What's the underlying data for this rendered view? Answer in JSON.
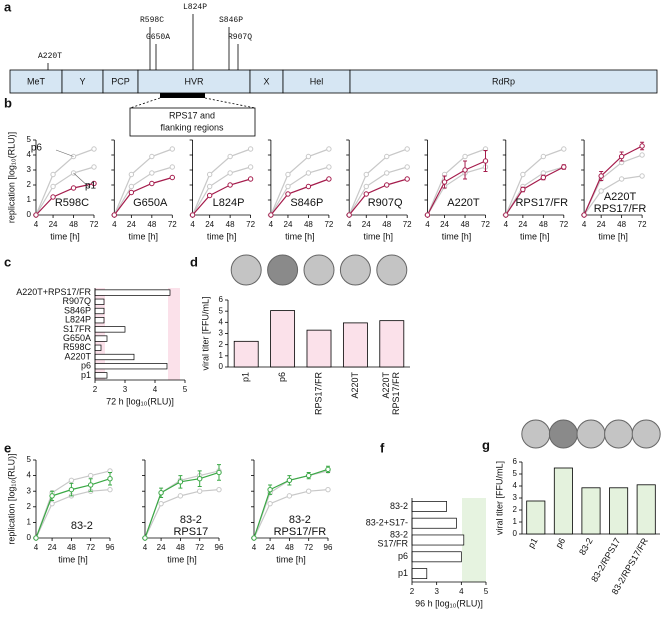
{
  "panel_labels": [
    "a",
    "b",
    "c",
    "d",
    "e",
    "f",
    "g"
  ],
  "genome": {
    "domains": [
      "MeT",
      "Y",
      "PCP",
      "HVR",
      "X",
      "Hel",
      "RdRp"
    ],
    "mutations": [
      "A220T",
      "R598C",
      "G650A",
      "L824P",
      "S846P",
      "R907Q"
    ],
    "inset": [
      "RPS17 and",
      "flanking regions"
    ]
  },
  "chart_data": [
    {
      "type": "line",
      "label": [
        "R598C"
      ],
      "annotations": [
        "p6",
        "p1"
      ],
      "ylabel": "replication [log₁₀(RLU)]",
      "xlabel": "time [h]",
      "x": [
        4,
        24,
        48,
        72
      ],
      "xlim": [
        4,
        72
      ],
      "xticks": [
        4,
        24,
        48,
        72
      ],
      "ylim": [
        0,
        5
      ],
      "yticks": [
        0,
        1,
        2,
        3,
        4,
        5
      ],
      "series": [
        {
          "color": "#c8c8c8",
          "values": [
            0,
            2.7,
            3.9,
            4.4
          ]
        },
        {
          "color": "#c8c8c8",
          "values": [
            0,
            1.9,
            2.8,
            3.2
          ]
        },
        {
          "color": "#a51c4c",
          "values": [
            0,
            1.2,
            1.8,
            2.1
          ]
        }
      ]
    },
    {
      "type": "line",
      "label": [
        "G650A"
      ],
      "xlabel": "time [h]",
      "x": [
        4,
        24,
        48,
        72
      ],
      "xlim": [
        4,
        72
      ],
      "xticks": [
        4,
        24,
        48,
        72
      ],
      "ylim": [
        0,
        5
      ],
      "yticks": [
        0,
        1,
        2,
        3,
        4,
        5
      ],
      "series": [
        {
          "color": "#c8c8c8",
          "values": [
            0,
            2.7,
            3.9,
            4.4
          ]
        },
        {
          "color": "#c8c8c8",
          "values": [
            0,
            1.9,
            2.8,
            3.2
          ]
        },
        {
          "color": "#a51c4c",
          "values": [
            0,
            1.5,
            2.1,
            2.5
          ]
        }
      ]
    },
    {
      "type": "line",
      "label": [
        "L824P"
      ],
      "xlabel": "time [h]",
      "x": [
        4,
        24,
        48,
        72
      ],
      "xlim": [
        4,
        72
      ],
      "xticks": [
        4,
        24,
        48,
        72
      ],
      "ylim": [
        0,
        5
      ],
      "yticks": [
        0,
        1,
        2,
        3,
        4,
        5
      ],
      "series": [
        {
          "color": "#c8c8c8",
          "values": [
            0,
            2.7,
            3.9,
            4.4
          ]
        },
        {
          "color": "#c8c8c8",
          "values": [
            0,
            1.9,
            2.8,
            3.2
          ]
        },
        {
          "color": "#a51c4c",
          "values": [
            0,
            1.3,
            2.0,
            2.4
          ]
        }
      ]
    },
    {
      "type": "line",
      "label": [
        "S846P"
      ],
      "xlabel": "time [h]",
      "x": [
        4,
        24,
        48,
        72
      ],
      "xlim": [
        4,
        72
      ],
      "xticks": [
        4,
        24,
        48,
        72
      ],
      "ylim": [
        0,
        5
      ],
      "yticks": [
        0,
        1,
        2,
        3,
        4,
        5
      ],
      "series": [
        {
          "color": "#c8c8c8",
          "values": [
            0,
            2.7,
            3.9,
            4.4
          ]
        },
        {
          "color": "#c8c8c8",
          "values": [
            0,
            1.9,
            2.8,
            3.2
          ]
        },
        {
          "color": "#a51c4c",
          "values": [
            0,
            1.4,
            1.9,
            2.4
          ]
        }
      ]
    },
    {
      "type": "line",
      "label": [
        "R907Q"
      ],
      "xlabel": "time [h]",
      "x": [
        4,
        24,
        48,
        72
      ],
      "xlim": [
        4,
        72
      ],
      "xticks": [
        4,
        24,
        48,
        72
      ],
      "ylim": [
        0,
        5
      ],
      "yticks": [
        0,
        1,
        2,
        3,
        4,
        5
      ],
      "series": [
        {
          "color": "#c8c8c8",
          "values": [
            0,
            2.7,
            3.9,
            4.4
          ]
        },
        {
          "color": "#c8c8c8",
          "values": [
            0,
            1.9,
            2.8,
            3.2
          ]
        },
        {
          "color": "#a51c4c",
          "values": [
            0,
            1.4,
            2.0,
            2.4
          ]
        }
      ]
    },
    {
      "type": "line",
      "label": [
        "A220T"
      ],
      "xlabel": "time [h]",
      "x": [
        4,
        24,
        48,
        72
      ],
      "xlim": [
        4,
        72
      ],
      "xticks": [
        4,
        24,
        48,
        72
      ],
      "ylim": [
        0,
        5
      ],
      "yticks": [
        0,
        1,
        2,
        3,
        4,
        5
      ],
      "series": [
        {
          "color": "#c8c8c8",
          "values": [
            0,
            2.7,
            3.9,
            4.4
          ]
        },
        {
          "color": "#c8c8c8",
          "values": [
            0,
            1.9,
            2.8,
            3.2
          ]
        },
        {
          "color": "#a51c4c",
          "values": [
            0,
            2.2,
            3.0,
            3.6
          ],
          "errors": [
            0,
            0.4,
            0.6,
            0.7
          ]
        }
      ]
    },
    {
      "type": "line",
      "label": [
        "RPS17/FR"
      ],
      "xlabel": "time [h]",
      "x": [
        4,
        24,
        48,
        72
      ],
      "xlim": [
        4,
        72
      ],
      "xticks": [
        4,
        24,
        48,
        72
      ],
      "ylim": [
        0,
        5
      ],
      "yticks": [
        0,
        1,
        2,
        3,
        4,
        5
      ],
      "series": [
        {
          "color": "#c8c8c8",
          "values": [
            0,
            2.7,
            3.9,
            4.4
          ]
        },
        {
          "color": "#c8c8c8",
          "values": [
            0,
            1.9,
            2.8,
            3.2
          ]
        },
        {
          "color": "#a51c4c",
          "values": [
            0,
            1.7,
            2.5,
            3.2
          ],
          "errors": [
            0,
            0.15,
            0.15,
            0.15
          ]
        }
      ]
    },
    {
      "type": "line",
      "label": [
        "A220T",
        "RPS17/FR"
      ],
      "xlabel": "time [h]",
      "x": [
        4,
        24,
        48,
        72
      ],
      "xlim": [
        4,
        72
      ],
      "xticks": [
        4,
        24,
        48,
        72
      ],
      "ylim": [
        0,
        5
      ],
      "yticks": [
        0,
        1,
        2,
        3,
        4,
        5
      ],
      "series": [
        {
          "color": "#c8c8c8",
          "values": [
            0,
            2.4,
            3.5,
            4.0
          ]
        },
        {
          "color": "#c8c8c8",
          "values": [
            0,
            1.6,
            2.4,
            2.6
          ]
        },
        {
          "color": "#a51c4c",
          "values": [
            0,
            2.6,
            3.9,
            4.6
          ],
          "errors": [
            0,
            0.3,
            0.3,
            0.25
          ]
        }
      ]
    },
    {
      "type": "hbar",
      "xlabel": "72 h [log₁₀(RLU)]",
      "categories": [
        "A220T+RPS17/FR",
        "R907Q",
        "S846P",
        "L824P",
        "S17FR",
        "G650A",
        "R598C",
        "A220T",
        "p6",
        "p1"
      ],
      "values": [
        4.5,
        2.3,
        2.3,
        2.3,
        3.0,
        2.4,
        2.2,
        3.3,
        4.4,
        2.4
      ],
      "color": "#ffffff",
      "xlim": [
        2,
        5
      ],
      "xticks": [
        2,
        3,
        4,
        5
      ]
    },
    {
      "type": "bar",
      "ylabel": "viral titer [FFU/mL]",
      "categories": [
        "p1",
        "p6",
        "RPS17/FR",
        "A220T",
        [
          "A220T",
          "RPS17/FR"
        ]
      ],
      "values": [
        2.3,
        5.05,
        3.3,
        3.95,
        4.15
      ],
      "color": "#fbe1ea",
      "ylim": [
        0,
        6
      ],
      "yticks": [
        0,
        1,
        2,
        3,
        4,
        5,
        6
      ]
    },
    {
      "type": "line",
      "label": [
        "83-2"
      ],
      "ylabel": "replication [log₁₀(RLU)]",
      "xlabel": "time [h]",
      "x": [
        4,
        24,
        48,
        72,
        96
      ],
      "xlim": [
        4,
        96
      ],
      "xticks": [
        4,
        24,
        48,
        72,
        96
      ],
      "ylim": [
        0,
        5
      ],
      "yticks": [
        0,
        1,
        2,
        3,
        4,
        5
      ],
      "series": [
        {
          "color": "#c8c8c8",
          "values": [
            0,
            2.9,
            3.7,
            4.0,
            4.3
          ]
        },
        {
          "color": "#c8c8c8",
          "values": [
            0,
            2.2,
            2.7,
            3.0,
            3.1
          ]
        },
        {
          "color": "#3aa845",
          "values": [
            0,
            2.7,
            3.1,
            3.4,
            3.8
          ],
          "errors": [
            0,
            0.3,
            0.4,
            0.4,
            0.4
          ]
        }
      ]
    },
    {
      "type": "line",
      "label": [
        "83-2",
        "RPS17"
      ],
      "xlabel": "time [h]",
      "x": [
        4,
        24,
        48,
        72,
        96
      ],
      "xlim": [
        4,
        96
      ],
      "xticks": [
        4,
        24,
        48,
        72,
        96
      ],
      "ylim": [
        0,
        5
      ],
      "yticks": [
        0,
        1,
        2,
        3,
        4,
        5
      ],
      "series": [
        {
          "color": "#c8c8c8",
          "values": [
            0,
            2.9,
            3.7,
            4.0,
            4.3
          ]
        },
        {
          "color": "#c8c8c8",
          "values": [
            0,
            2.2,
            2.7,
            3.0,
            3.1
          ]
        },
        {
          "color": "#3aa845",
          "values": [
            0,
            2.9,
            3.6,
            3.8,
            4.2
          ],
          "errors": [
            0,
            0.3,
            0.4,
            0.5,
            0.5
          ]
        }
      ]
    },
    {
      "type": "line",
      "label": [
        "83-2",
        "RPS17/FR"
      ],
      "xlabel": "time [h]",
      "x": [
        4,
        24,
        48,
        72,
        96
      ],
      "xlim": [
        4,
        96
      ],
      "xticks": [
        4,
        24,
        48,
        72,
        96
      ],
      "ylim": [
        0,
        5
      ],
      "yticks": [
        0,
        1,
        2,
        3,
        4,
        5
      ],
      "series": [
        {
          "color": "#c8c8c8",
          "values": [
            0,
            2.9,
            3.7,
            4.0,
            4.3
          ]
        },
        {
          "color": "#c8c8c8",
          "values": [
            0,
            2.2,
            2.7,
            3.0,
            3.1
          ]
        },
        {
          "color": "#3aa845",
          "values": [
            0,
            3.1,
            3.7,
            4.0,
            4.4
          ],
          "errors": [
            0,
            0.3,
            0.3,
            0.2,
            0.2
          ]
        }
      ]
    },
    {
      "type": "hbar",
      "xlabel": "96 h [log₁₀(RLU)]",
      "categories": [
        "83-2",
        "83-2+S17-",
        [
          "83-2",
          "S17/FR"
        ],
        "p6",
        "p1"
      ],
      "values": [
        3.4,
        3.8,
        4.1,
        4.0,
        2.6
      ],
      "color": "#ffffff",
      "xlim": [
        2,
        5
      ],
      "xticks": [
        2,
        3,
        4,
        5
      ]
    },
    {
      "type": "bar",
      "ylabel": "viral titer [FFU/mL]",
      "categories": [
        "p1",
        "p6",
        "83-2",
        "83-2/RPS17",
        "83-2/RPS17/FR"
      ],
      "values": [
        2.75,
        5.5,
        3.85,
        3.85,
        4.1
      ],
      "color": "#e4f2dd",
      "ylim": [
        0,
        6
      ],
      "yticks": [
        0,
        1,
        2,
        3,
        4,
        5,
        6
      ]
    }
  ]
}
